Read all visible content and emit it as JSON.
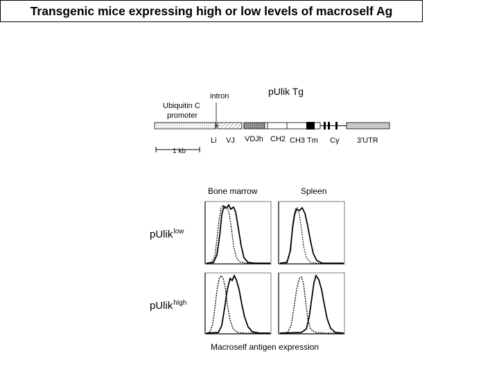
{
  "title": "Transgenic mice expressing high or low levels of macroself Ag",
  "construct": {
    "name": "pUlik Tg",
    "promoter_label_line1": "Ubiquitin C",
    "promoter_label_line2": "promoter",
    "intron_label": "intron",
    "segments": {
      "li": "Li",
      "vj": "VJ",
      "vdjh": "VDJh",
      "ch2": "CH2",
      "ch3tm": "CH3 Tm",
      "cy": "Cy",
      "utr": "3'UTR"
    },
    "scale_bar": "1 kb"
  },
  "columns": {
    "bone_marrow": "Bone marrow",
    "spleen": "Spleen"
  },
  "rows": {
    "low": {
      "base": "pUlik",
      "sup": "low"
    },
    "high": {
      "base": "pUlik",
      "sup": "high"
    }
  },
  "x_axis_label": "Macroself antigen expression"
}
